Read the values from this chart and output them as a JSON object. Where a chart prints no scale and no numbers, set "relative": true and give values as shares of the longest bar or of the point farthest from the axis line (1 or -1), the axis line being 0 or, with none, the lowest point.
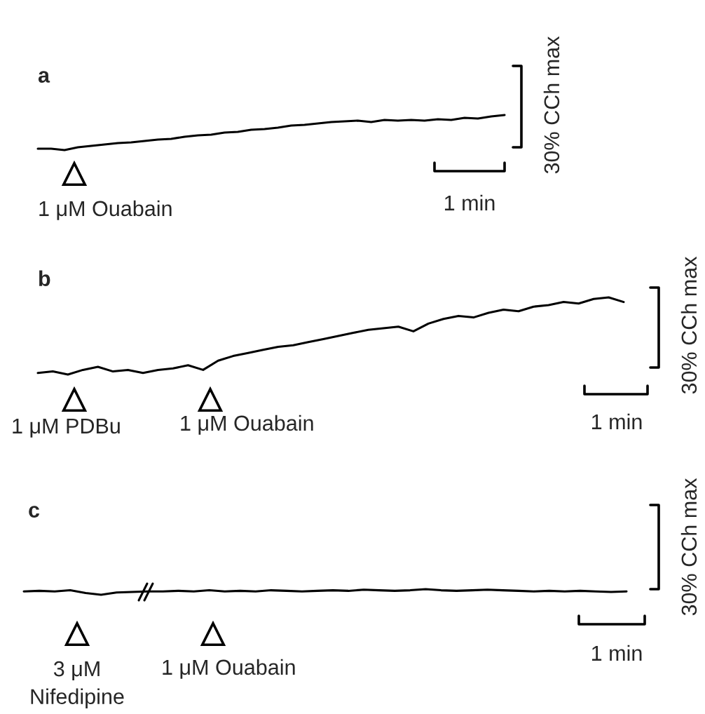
{
  "chart_data": [
    {
      "type": "line",
      "title": "a",
      "relative": true,
      "categories": [
        null,
        null,
        null,
        null,
        null,
        null,
        null,
        null,
        null,
        null,
        null,
        null,
        null,
        null,
        null,
        null,
        null,
        null,
        null,
        null,
        null,
        null,
        null,
        null,
        null,
        null,
        null,
        null,
        null,
        null,
        null,
        null,
        null,
        null,
        null,
        null
      ],
      "series": [
        {
          "color": "#000000",
          "values": [
            0.04,
            0.04,
            0.0,
            0.08,
            0.12,
            0.16,
            0.2,
            0.22,
            0.26,
            0.3,
            0.32,
            0.38,
            0.42,
            0.44,
            0.5,
            0.52,
            0.58,
            0.6,
            0.64,
            0.7,
            0.72,
            0.76,
            0.8,
            0.82,
            0.84,
            0.8,
            0.86,
            0.84,
            0.86,
            0.84,
            0.88,
            0.86,
            0.92,
            0.9,
            0.96,
            1.0
          ]
        }
      ],
      "annotations": [
        "1 μM Ouabain",
        "1 min",
        "30% CCh max"
      ]
    },
    {
      "type": "line",
      "title": "b",
      "relative": true,
      "categories": [
        null,
        null,
        null,
        null,
        null,
        null,
        null,
        null,
        null,
        null,
        null,
        null,
        null,
        null,
        null,
        null,
        null,
        null,
        null,
        null,
        null,
        null,
        null,
        null,
        null,
        null,
        null,
        null,
        null,
        null,
        null,
        null,
        null,
        null,
        null,
        null,
        null,
        null,
        null,
        null
      ],
      "series": [
        {
          "color": "#000000",
          "values": [
            0.02,
            0.04,
            0.0,
            0.06,
            0.1,
            0.04,
            0.06,
            0.02,
            0.06,
            0.08,
            0.12,
            0.06,
            0.18,
            0.24,
            0.28,
            0.32,
            0.36,
            0.38,
            0.42,
            0.46,
            0.5,
            0.54,
            0.58,
            0.6,
            0.62,
            0.56,
            0.66,
            0.72,
            0.76,
            0.74,
            0.8,
            0.84,
            0.82,
            0.88,
            0.9,
            0.94,
            0.92,
            0.98,
            1.0,
            0.94
          ]
        }
      ],
      "annotations": [
        "1 μM PDBu",
        "1 μM Ouabain",
        "1 min",
        "30% CCh max"
      ]
    },
    {
      "type": "line",
      "title": "c",
      "relative": true,
      "categories": [
        null,
        null,
        null,
        null,
        null,
        null,
        null,
        null,
        null,
        null,
        null,
        null,
        null,
        null,
        null,
        null,
        null,
        null,
        null,
        null,
        null,
        null,
        null,
        null,
        null,
        null,
        null,
        null,
        null,
        null,
        null,
        null,
        null,
        null,
        null,
        null,
        null,
        null,
        null,
        null
      ],
      "series": [
        {
          "color": "#000000",
          "values": [
            0.6,
            0.7,
            0.6,
            0.8,
            0.3,
            0.0,
            0.4,
            0.5,
            0.6,
            0.6,
            0.7,
            0.6,
            0.8,
            0.6,
            0.7,
            0.6,
            0.8,
            0.7,
            0.6,
            0.7,
            0.8,
            0.7,
            0.9,
            0.8,
            0.7,
            0.8,
            1.0,
            0.8,
            0.7,
            0.8,
            0.9,
            0.8,
            0.7,
            0.6,
            0.7,
            0.6,
            0.7,
            0.6,
            0.5,
            0.6
          ]
        }
      ],
      "annotations": [
        "3 μM\nNifedipine",
        "1 μM Ouabain",
        "1 min",
        "30% CCh max"
      ]
    }
  ]
}
